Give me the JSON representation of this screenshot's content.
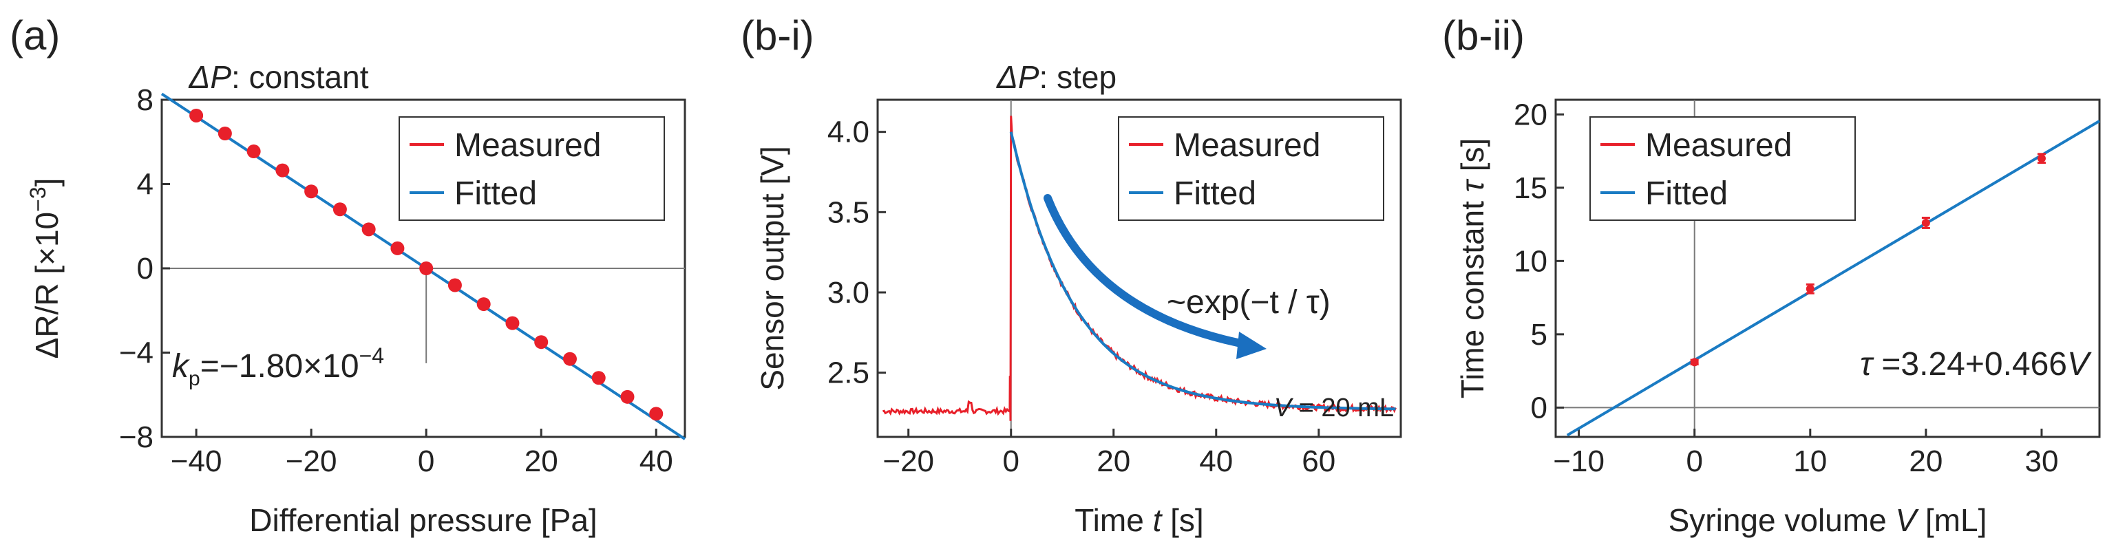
{
  "colors": {
    "measured": "#e8202a",
    "fitted": "#1a7bc3",
    "arrow": "#1a6fc0",
    "zero": "#7a7a7a"
  },
  "panels": [
    {
      "label": "(a)",
      "title_prefix": "ΔP",
      "title_suffix": ": constant",
      "xlabel": "Differential pressure [Pa]",
      "ylabel_main": "ΔR/R [×10",
      "ylabel_exp": "−3",
      "ylabel_end": "]",
      "legend": [
        "Measured",
        "Fitted"
      ],
      "ann_k": "k",
      "ann_sub": "p",
      "ann_eq": "=−1.80×10",
      "ann_exp": "−4"
    },
    {
      "label": "(b-i)",
      "title_prefix": "ΔP",
      "title_suffix": ": step",
      "xlabel_pre": "Time ",
      "xlabel_var": "t",
      "xlabel_post": " [s]",
      "ylabel": "Sensor output [V]",
      "legend": [
        "Measured",
        "Fitted"
      ],
      "ann_exp": "~exp(−t / τ)",
      "ann_vol_var": "V",
      "ann_vol": " = 20 mL"
    },
    {
      "label": "(b-ii)",
      "xlabel_pre": "Syringe volume ",
      "xlabel_var": "V",
      "xlabel_post": " [mL]",
      "ylabel_pre": "Time constant ",
      "ylabel_var": "τ",
      "ylabel_post": " [s]",
      "legend": [
        "Measured",
        "Fitted"
      ],
      "ann_tau": "τ",
      "ann_eq": " =3.24+0.466",
      "ann_v": "V"
    }
  ],
  "chart_data": [
    {
      "type": "scatter",
      "title": "ΔP: constant",
      "xlabel": "Differential pressure [Pa]",
      "ylabel": "ΔR/R [×10−3]",
      "xlim": [
        -46,
        45
      ],
      "ylim": [
        -8,
        8
      ],
      "xticks": [
        -40,
        -20,
        0,
        20,
        40
      ],
      "yticks": [
        -8,
        -4,
        0,
        4,
        8
      ],
      "series": [
        {
          "name": "Measured",
          "x": [
            -40,
            -35,
            -30,
            -25,
            -20,
            -15,
            -10,
            -5,
            0,
            5,
            10,
            15,
            20,
            25,
            30,
            35,
            40
          ],
          "y": [
            7.25,
            6.4,
            5.55,
            4.65,
            3.65,
            2.8,
            1.85,
            0.95,
            0,
            -0.8,
            -1.7,
            -2.6,
            -3.5,
            -4.3,
            -5.2,
            -6.1,
            -6.9
          ]
        },
        {
          "name": "Fitted",
          "type": "line",
          "x": [
            -46,
            45
          ],
          "y": [
            8.28,
            -8.1
          ]
        }
      ],
      "annotation": "kp=−1.80×10−4"
    },
    {
      "type": "line",
      "title": "ΔP: step",
      "xlabel": "Time t [s]",
      "ylabel": "Sensor output [V]",
      "xlim": [
        -26,
        76
      ],
      "ylim": [
        2.1,
        4.2
      ],
      "xticks": [
        -20,
        0,
        20,
        40,
        60
      ],
      "yticks": [
        2.5,
        3.0,
        3.5,
        4.0
      ],
      "model": {
        "baseline": 2.27,
        "peak": 4.0,
        "tau": 12.5,
        "step_time": 0
      },
      "series": [
        {
          "name": "Measured",
          "x": [
            -25,
            -10,
            -0.5,
            0,
            5,
            10,
            20,
            30,
            40,
            50,
            60,
            75
          ],
          "y": [
            2.26,
            2.25,
            2.25,
            4.1,
            3.37,
            2.97,
            2.55,
            2.38,
            2.31,
            2.29,
            2.27,
            2.27
          ]
        },
        {
          "name": "Fitted",
          "x": [
            0,
            5,
            10,
            20,
            30,
            40,
            50,
            60,
            75
          ],
          "y": [
            4.0,
            3.43,
            3.04,
            2.62,
            2.42,
            2.34,
            2.3,
            2.28,
            2.27
          ]
        }
      ],
      "annotations": [
        "~exp(−t / τ)",
        "V = 20 mL"
      ]
    },
    {
      "type": "scatter",
      "xlabel": "Syringe volume V [mL]",
      "ylabel": "Time constant τ [s]",
      "xlim": [
        -12,
        35
      ],
      "ylim": [
        -2,
        21
      ],
      "xticks": [
        -10,
        0,
        10,
        20,
        30
      ],
      "yticks": [
        0,
        5,
        10,
        15,
        20
      ],
      "series": [
        {
          "name": "Measured",
          "x": [
            0,
            10,
            20,
            30
          ],
          "y": [
            3.1,
            8.1,
            12.6,
            17.0
          ],
          "err": [
            0.15,
            0.3,
            0.35,
            0.3
          ]
        },
        {
          "name": "Fitted",
          "type": "line",
          "x": [
            -11,
            35
          ],
          "y": [
            -1.886,
            19.55
          ]
        }
      ],
      "annotation": "τ =3.24+0.466V"
    }
  ]
}
